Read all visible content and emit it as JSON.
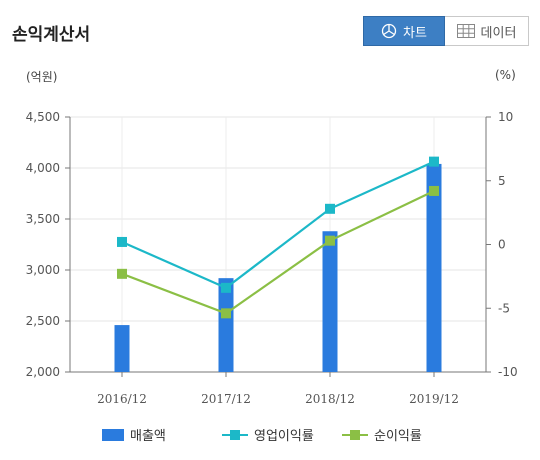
{
  "title": "손익계산서",
  "toggle": {
    "chart_label": "차트",
    "chart_icon": "pie-chart-icon",
    "data_label": "데이터",
    "data_icon": "table-icon",
    "active_color": "#3d7fc4"
  },
  "units": {
    "left": "(억원)",
    "right": "(%)"
  },
  "chart_data": {
    "type": "bar",
    "categories": [
      "2016/12",
      "2017/12",
      "2018/12",
      "2019/12"
    ],
    "ylim_left": [
      2000,
      4500
    ],
    "ylim_right": [
      -10,
      10
    ],
    "y_ticks_left": [
      "2,000",
      "2,500",
      "3,000",
      "3,500",
      "4,000",
      "4,500"
    ],
    "y_ticks_right": [
      "-10",
      "-5",
      "0",
      "5",
      "10"
    ],
    "grid": true,
    "legend_position": "bottom",
    "series": [
      {
        "name": "매출액",
        "type": "bar",
        "axis": "left",
        "color": "#2a7bde",
        "values": [
          2460,
          2920,
          3380,
          4040
        ]
      },
      {
        "name": "영업이익률",
        "type": "line",
        "axis": "right",
        "color": "#1cb8c8",
        "values": [
          0.2,
          -3.4,
          2.8,
          6.5
        ]
      },
      {
        "name": "순이익률",
        "type": "line",
        "axis": "right",
        "color": "#8bbf45",
        "values": [
          -2.3,
          -5.4,
          0.3,
          4.2
        ]
      }
    ]
  }
}
